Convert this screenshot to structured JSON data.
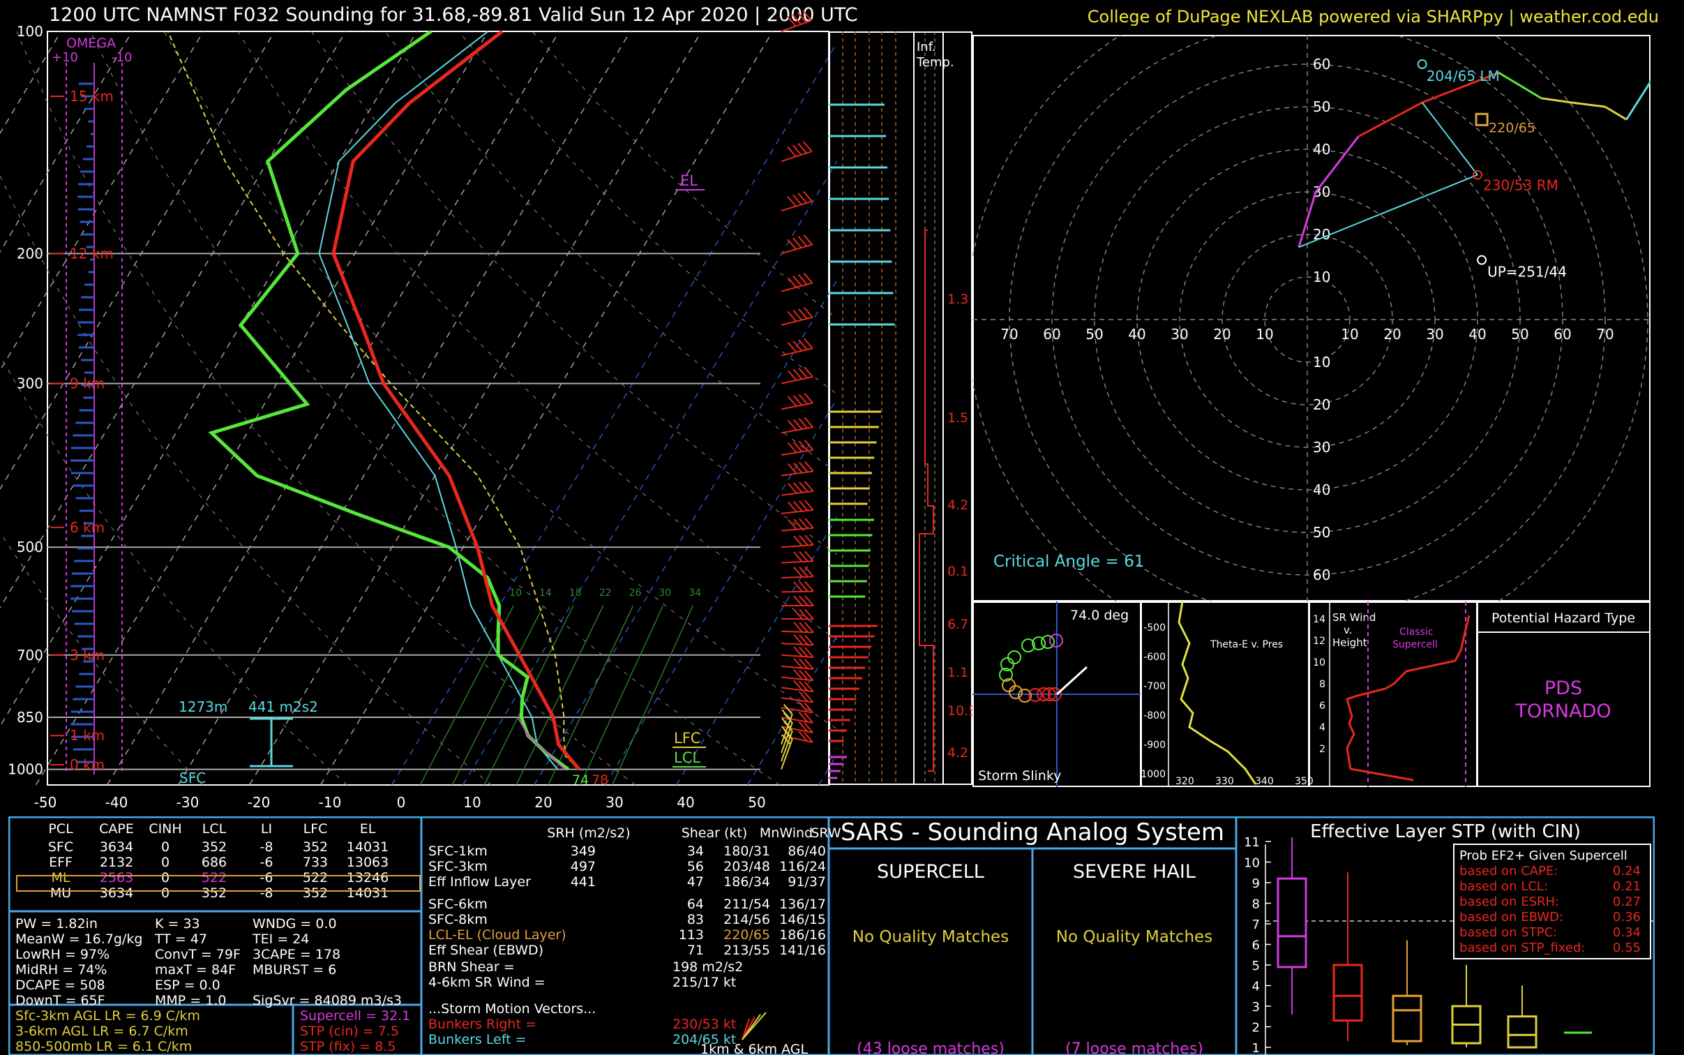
{
  "header": {
    "title": "1200 UTC NAMNST F032 Sounding for 31.68,-89.81 Valid  Sun 12 Apr 2020 | 2000 UTC",
    "credit": "College of DuPage NEXLAB powered via SHARPpy | weather.cod.edu"
  },
  "colors": {
    "temperature": "#e8281e",
    "dewpoint": "#55e83a",
    "wetbulb": "#5ad8e0",
    "parcel": "#e0d040",
    "magenta": "#d63ae0",
    "panel_border": "#4aa8e8"
  },
  "chart_data": [
    {
      "type": "skew-t",
      "pressure_ticks": [
        100,
        200,
        300,
        500,
        700,
        850,
        1000
      ],
      "temp_ticks": [
        -50,
        -40,
        -30,
        -20,
        -10,
        0,
        10,
        20,
        30,
        40,
        50
      ],
      "height_labels": [
        "15 km",
        "12 km",
        "9 km",
        "6 km",
        "3 km",
        "1 km",
        "0 km"
      ],
      "omega_label": "OMEGA",
      "omega_ticks": [
        "+10",
        "-10"
      ],
      "el_label": "EL",
      "lfc_label": "LFC",
      "lcl_label": "LCL",
      "sfc_label": "SFC",
      "inflow_base": "1273m",
      "inflow_srh": "441 m2s2",
      "sfc_temp": "78",
      "sfc_dew": "74",
      "mixing_ratio_labels": [
        "10",
        "14",
        "18",
        "22",
        "26",
        "30",
        "34"
      ],
      "temperature": [
        [
          1000,
          25
        ],
        [
          925,
          20
        ],
        [
          850,
          17
        ],
        [
          700,
          7
        ],
        [
          600,
          -1
        ],
        [
          500,
          -8
        ],
        [
          400,
          -18
        ],
        [
          300,
          -35
        ],
        [
          250,
          -43
        ],
        [
          200,
          -53
        ],
        [
          150,
          -58
        ],
        [
          125,
          -55
        ],
        [
          100,
          -48
        ]
      ],
      "dewpoint": [
        [
          1000,
          23.5
        ],
        [
          950,
          19
        ],
        [
          900,
          15
        ],
        [
          850,
          12.5
        ],
        [
          800,
          11
        ],
        [
          750,
          10
        ],
        [
          700,
          4
        ],
        [
          650,
          2
        ],
        [
          600,
          0
        ],
        [
          550,
          -4
        ],
        [
          500,
          -12
        ],
        [
          450,
          -28
        ],
        [
          400,
          -45
        ],
        [
          350,
          -55
        ],
        [
          320,
          -44
        ],
        [
          250,
          -60
        ],
        [
          200,
          -58
        ],
        [
          150,
          -70
        ],
        [
          120,
          -65
        ],
        [
          100,
          -58
        ]
      ]
    },
    {
      "type": "hodograph",
      "ring_labels": [
        "10",
        "20",
        "30",
        "40",
        "50",
        "60",
        "70"
      ],
      "points": [
        [
          -2,
          17
        ],
        [
          2,
          30
        ],
        [
          12,
          43
        ],
        [
          27,
          51
        ],
        [
          45,
          58
        ],
        [
          55,
          52
        ],
        [
          62,
          51
        ],
        [
          70,
          50
        ],
        [
          75,
          47
        ],
        [
          82,
          58
        ]
      ],
      "lm_label": "204/65 LM",
      "ef_label": "220/65",
      "rm_label": "230/53 RM",
      "up_label": "UP=251/44",
      "critical_angle": "Critical Angle = 61"
    }
  ],
  "slinky": {
    "angle": "74.0 deg",
    "label": "Storm Slinky"
  },
  "theta": {
    "title": "Theta-E v. Pres",
    "x_ticks": [
      "320",
      "330",
      "340",
      "350"
    ],
    "y_ticks": [
      "-500",
      "-600",
      "-700",
      "-800",
      "-900",
      "1000"
    ]
  },
  "srwind": {
    "title_a": "SR Wind",
    "title_b": "v.",
    "title_c": "Height",
    "label_a": "Classic",
    "label_b": "Supercell",
    "y_ticks": [
      "14",
      "12",
      "10",
      "8",
      "6",
      "4",
      "2"
    ]
  },
  "hazard": {
    "title": "Potential Hazard Type",
    "line1": "PDS",
    "line2": "TORNADO"
  },
  "infl": {
    "title_a": "Inf.",
    "title_b": "Temp.",
    "labels": [
      "1.3",
      "1.5",
      "4.2",
      "0.1",
      "6.7",
      "1.1",
      "10.5",
      "4.2"
    ]
  },
  "parcels": {
    "headers": [
      "PCL",
      "CAPE",
      "CINH",
      "LCL",
      "LI",
      "LFC",
      "EL"
    ],
    "rows": [
      [
        "SFC",
        "3634",
        "0",
        "352",
        "-8",
        "352",
        "14031"
      ],
      [
        "EFF",
        "2132",
        "0",
        "686",
        "-6",
        "733",
        "13063"
      ],
      [
        "ML",
        "2563",
        "0",
        "522",
        "-6",
        "522",
        "13246"
      ],
      [
        "MU",
        "3634",
        "0",
        "352",
        "-8",
        "352",
        "14031"
      ]
    ]
  },
  "indices": {
    "col1": [
      "PW = 1.82in",
      "MeanW = 16.7g/kg",
      "LowRH = 97%",
      "MidRH = 74%",
      "DCAPE = 508",
      "DownT = 65F"
    ],
    "col2": [
      "K = 33",
      "TT = 47",
      "ConvT = 79F",
      "maxT = 84F",
      "ESP = 0.0",
      "MMP = 1.0"
    ],
    "col3": [
      "WNDG = 0.0",
      "TEI = 24",
      "3CAPE = 178",
      "MBURST = 6",
      "",
      "SigSvr = 84089 m3/s3"
    ]
  },
  "lapse": [
    "Sfc-3km AGL LR = 6.9 C/km",
    "3-6km AGL LR = 6.7 C/km",
    "850-500mb LR = 6.1 C/km"
  ],
  "composite": [
    "Supercell = 32.1",
    "STP (cin) = 7.5",
    "STP (fix) = 8.5"
  ],
  "kinematics": {
    "headers": [
      "SRH (m2/s2)",
      "Shear (kt)",
      "MnWind",
      "SRW"
    ],
    "rows": [
      [
        "SFC-1km",
        "349",
        "34",
        "180/31",
        "86/40"
      ],
      [
        "SFC-3km",
        "497",
        "56",
        "203/48",
        "116/24"
      ],
      [
        "Eff Inflow Layer",
        "441",
        "47",
        "186/34",
        "91/37"
      ],
      [
        "SFC-6km",
        "",
        "64",
        "211/54",
        "136/17"
      ],
      [
        "SFC-8km",
        "",
        "83",
        "214/56",
        "146/15"
      ],
      [
        "LCL-EL (Cloud Layer)",
        "",
        "113",
        "220/65",
        "186/16"
      ],
      [
        "Eff Shear (EBWD)",
        "",
        "71",
        "213/55",
        "141/16"
      ]
    ],
    "brn_label": "BRN Shear =",
    "brn_value": "198 m2/s2",
    "sr46_label": "4-6km SR Wind =",
    "sr46_value": "215/17 kt",
    "motion_title": "...Storm Motion Vectors...",
    "br_label": "Bunkers Right =",
    "br_value": "230/53 kt",
    "bl_label": "Bunkers Left =",
    "bl_value": "204/65 kt",
    "barb_label": "1km & 6km AGL"
  },
  "sars": {
    "title": "SARS - Sounding Analog System",
    "col1": "SUPERCELL",
    "col2": "SEVERE HAIL",
    "match1": "No Quality Matches",
    "match2": "No Quality Matches",
    "loose1": "(43 loose matches)",
    "loose2": "(7 loose matches)"
  },
  "stp": {
    "title": "Effective Layer STP (with CIN)",
    "y_ticks": [
      "11",
      "10",
      "9",
      "8",
      "7",
      "6",
      "5",
      "4",
      "3",
      "2",
      "1"
    ],
    "prob_title": "Prob EF2+ Given Supercell",
    "prob": [
      [
        "based on CAPE:",
        "0.24"
      ],
      [
        "based on LCL:",
        "0.21"
      ],
      [
        "based on ESRH:",
        "0.27"
      ],
      [
        "based on EBWD:",
        "0.36"
      ],
      [
        "based on STPC:",
        "0.34"
      ],
      [
        "based on STP_fixed:",
        "0.55"
      ]
    ]
  }
}
